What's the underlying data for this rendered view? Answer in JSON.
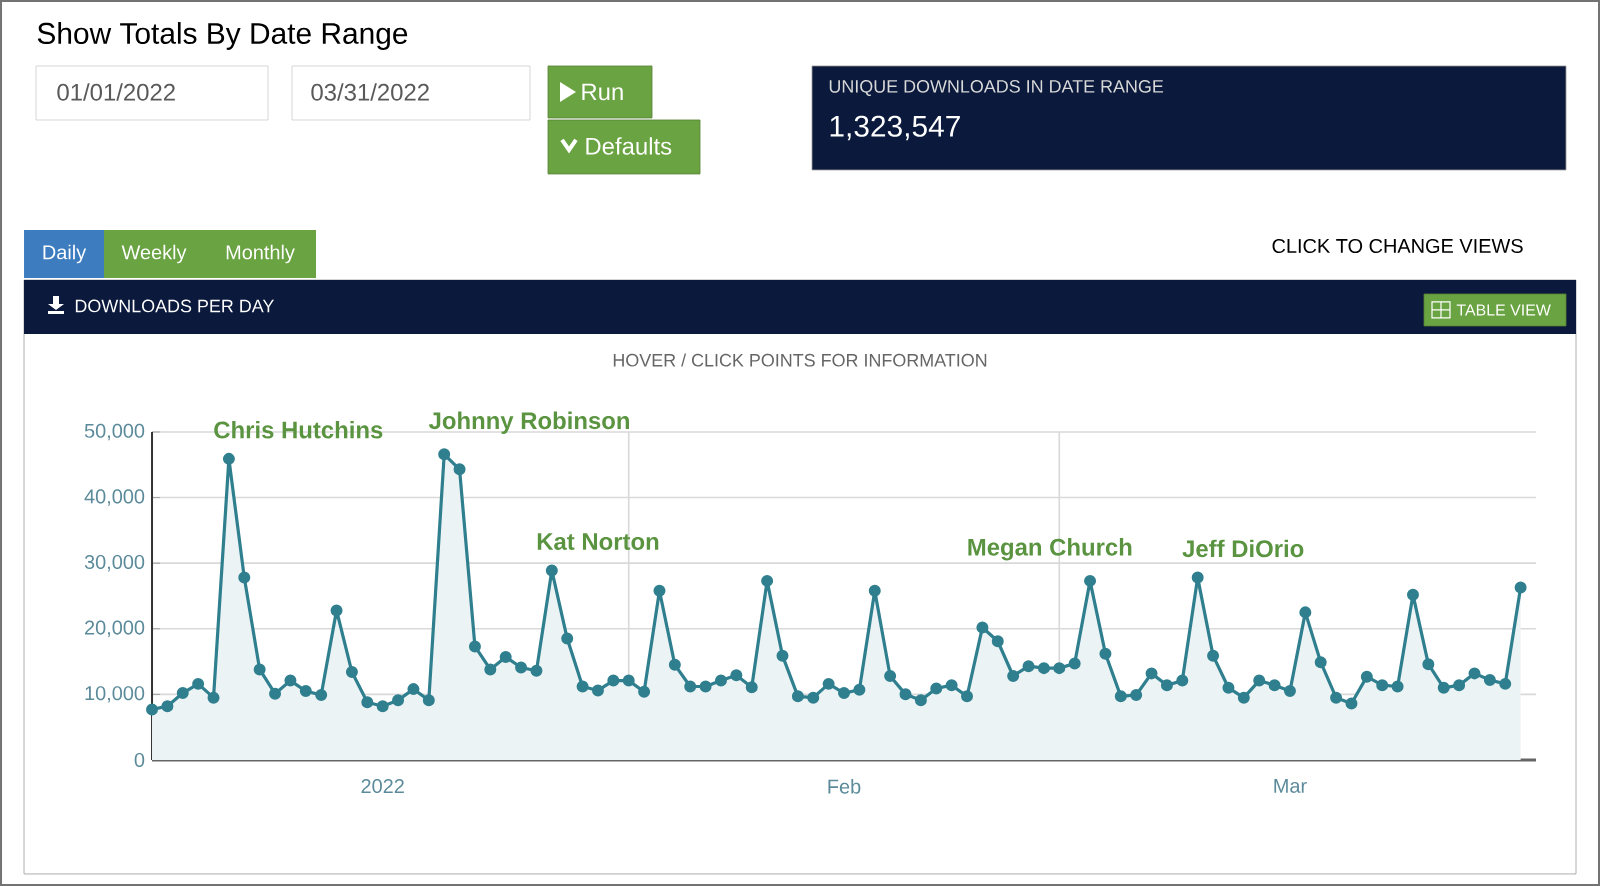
{
  "chart_data": {
    "type": "area",
    "title": "DOWNLOADS PER DAY",
    "subtitle": "HOVER / CLICK POINTS FOR INFORMATION",
    "x": [
      "2022-01-01",
      "2022-01-02",
      "2022-01-03",
      "2022-01-04",
      "2022-01-05",
      "2022-01-06",
      "2022-01-07",
      "2022-01-08",
      "2022-01-09",
      "2022-01-10",
      "2022-01-11",
      "2022-01-12",
      "2022-01-13",
      "2022-01-14",
      "2022-01-15",
      "2022-01-16",
      "2022-01-17",
      "2022-01-18",
      "2022-01-19",
      "2022-01-20",
      "2022-01-21",
      "2022-01-22",
      "2022-01-23",
      "2022-01-24",
      "2022-01-25",
      "2022-01-26",
      "2022-01-27",
      "2022-01-28",
      "2022-01-29",
      "2022-01-30",
      "2022-01-31",
      "2022-02-01",
      "2022-02-02",
      "2022-02-03",
      "2022-02-04",
      "2022-02-05",
      "2022-02-06",
      "2022-02-07",
      "2022-02-08",
      "2022-02-09",
      "2022-02-10",
      "2022-02-11",
      "2022-02-12",
      "2022-02-13",
      "2022-02-14",
      "2022-02-15",
      "2022-02-16",
      "2022-02-17",
      "2022-02-18",
      "2022-02-19",
      "2022-02-20",
      "2022-02-21",
      "2022-02-22",
      "2022-02-23",
      "2022-02-24",
      "2022-02-25",
      "2022-02-26",
      "2022-02-27",
      "2022-02-28",
      "2022-03-01",
      "2022-03-02",
      "2022-03-03",
      "2022-03-04",
      "2022-03-05",
      "2022-03-06",
      "2022-03-07",
      "2022-03-08",
      "2022-03-09",
      "2022-03-10",
      "2022-03-11",
      "2022-03-12",
      "2022-03-13",
      "2022-03-14",
      "2022-03-15",
      "2022-03-16",
      "2022-03-17",
      "2022-03-18",
      "2022-03-19",
      "2022-03-20",
      "2022-03-21",
      "2022-03-22",
      "2022-03-23",
      "2022-03-24",
      "2022-03-25",
      "2022-03-26",
      "2022-03-27",
      "2022-03-28",
      "2022-03-29",
      "2022-03-30",
      "2022-03-31"
    ],
    "series": [
      {
        "color": "#2f7f8f",
        "values": [
          7700,
          8200,
          10200,
          11600,
          9500,
          45900,
          27800,
          13800,
          10100,
          12100,
          10500,
          9900,
          22800,
          13400,
          8800,
          8200,
          9100,
          10800,
          9100,
          46600,
          44300,
          17300,
          13800,
          15700,
          14100,
          13600,
          28900,
          18500,
          11200,
          10600,
          12100,
          12100,
          10400,
          25800,
          14500,
          11200,
          11200,
          12100,
          12900,
          11100,
          27300,
          15900,
          9700,
          9500,
          11600,
          10200,
          10700,
          25800,
          12800,
          10000,
          9100,
          10900,
          11400,
          9700,
          20200,
          18100,
          12800,
          14300,
          14000,
          14000,
          14700,
          27300,
          16200,
          9700,
          9900,
          13200,
          11400,
          12100,
          27800,
          15900,
          11000,
          9500,
          12100,
          11400,
          10500,
          22500,
          14900,
          9500,
          8600,
          12700,
          11400,
          11200,
          25200,
          14600,
          11000,
          11400,
          13200,
          12200,
          11600,
          26300
        ]
      }
    ],
    "xlim": [
      "2022-01-01",
      "2022-04-01"
    ],
    "xticks": [
      {
        "value": "2022-02-01",
        "label": null
      },
      {
        "value": "2022-03-01",
        "label": null
      },
      {
        "value": "2022-01-16",
        "label": "2022"
      },
      {
        "value": "2022-02-15",
        "label": "Feb"
      },
      {
        "value": "2022-03-16",
        "label": "Mar"
      }
    ],
    "ylim": [
      0,
      50000
    ],
    "yticks": [
      0,
      {
        "value": 10000,
        "label": "10,000"
      },
      {
        "value": 20000,
        "label": "20,000"
      },
      {
        "value": 30000,
        "label": "30,000"
      },
      {
        "value": 40000,
        "label": "40,000"
      },
      {
        "value": 50000,
        "label": "50,000"
      }
    ],
    "grid": true,
    "marker": "circle",
    "line_style": "solid",
    "annotations": [
      "Show Totals By Date Range",
      "01/01/2022",
      "03/31/2022",
      "Run",
      "Defaults",
      "UNIQUE DOWNLOADS IN DATE RANGE",
      "1,323,547",
      "Daily",
      "Weekly",
      "Monthly",
      "CLICK TO CHANGE VIEWS",
      "TABLE VIEW",
      {
        "text": "Chris Hutchins",
        "x": "2022-01-06",
        "y": 45900
      },
      {
        "text": "Johnny Robinson",
        "x": "2022-01-20",
        "y": 46600
      },
      {
        "text": "Kat Norton",
        "x": "2022-01-27",
        "y": 28900
      },
      {
        "text": "Megan Church",
        "x": "2022-02-24",
        "y": 20200
      },
      {
        "text": "Jeff DiOrio",
        "x": "2022-03-10",
        "y": 27800
      }
    ]
  }
}
